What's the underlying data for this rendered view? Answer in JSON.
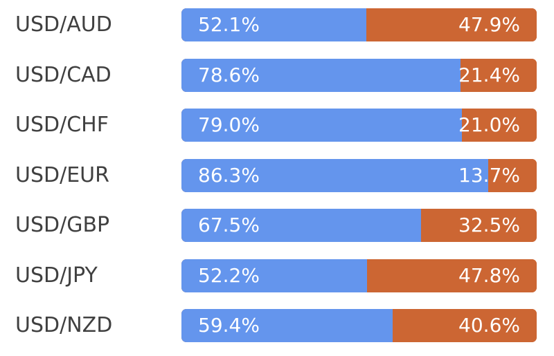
{
  "chart_data": {
    "type": "bar",
    "stacked": "percent",
    "orientation": "horizontal",
    "categories": [
      "USD/AUD",
      "USD/CAD",
      "USD/CHF",
      "USD/EUR",
      "USD/GBP",
      "USD/JPY",
      "USD/NZD"
    ],
    "series": [
      {
        "color": "#6495ed",
        "values": [
          52.1,
          78.6,
          79.0,
          86.3,
          67.5,
          52.2,
          59.4
        ],
        "labels": [
          "52.1%",
          "78.6%",
          "79.0%",
          "86.3%",
          "67.5%",
          "52.2%",
          "59.4%"
        ]
      },
      {
        "color": "#cc6633",
        "values": [
          47.9,
          21.4,
          21.0,
          13.7,
          32.5,
          47.8,
          40.6
        ],
        "labels": [
          "47.9%",
          "21.4%",
          "21.0%",
          "13.7%",
          "32.5%",
          "47.8%",
          "40.6%"
        ]
      }
    ],
    "xlim": [
      0,
      100
    ],
    "title": "",
    "xlabel": "",
    "ylabel": "",
    "grid": false,
    "legend": "none"
  }
}
